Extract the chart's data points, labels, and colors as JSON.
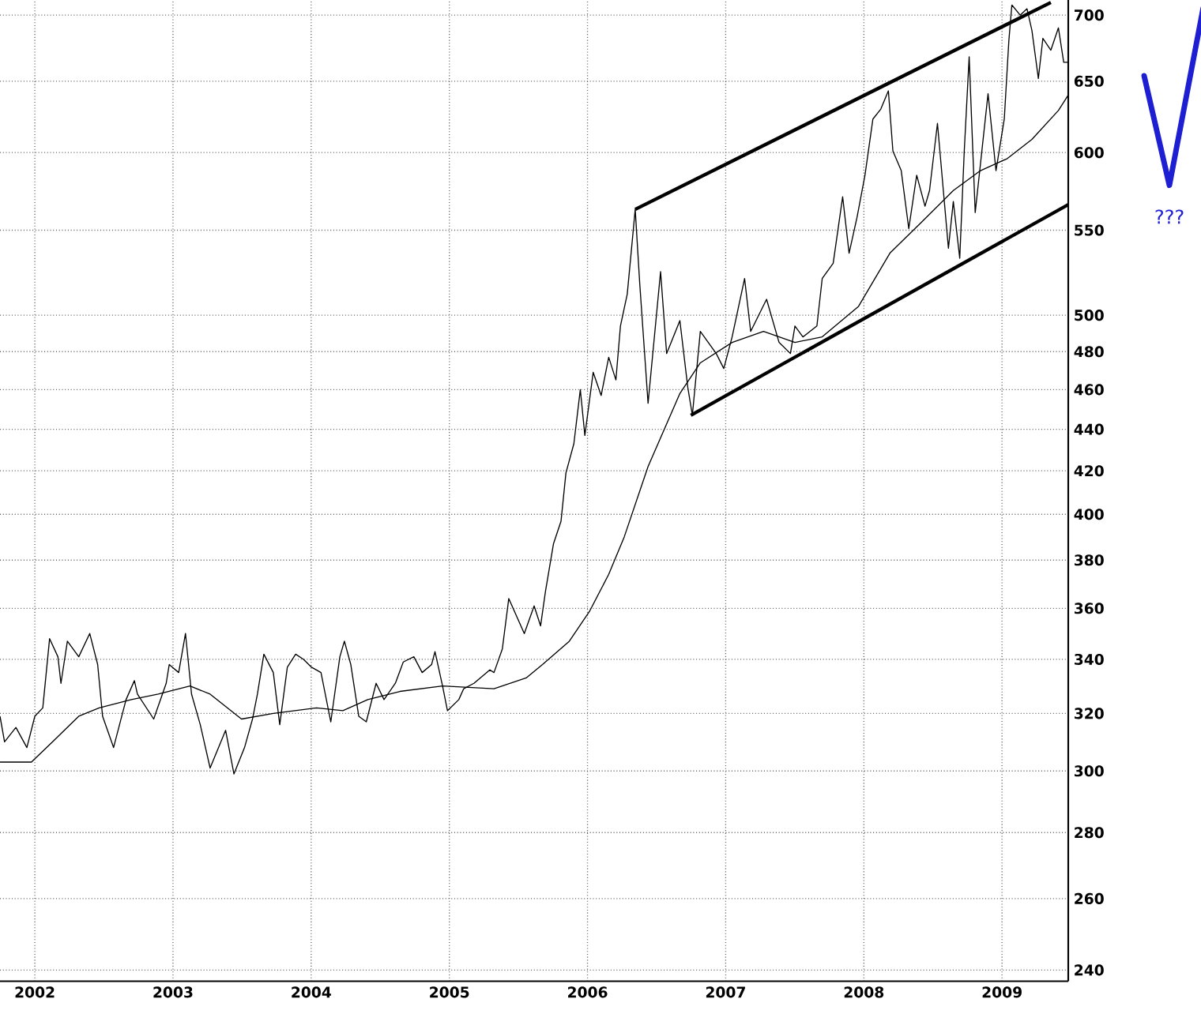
{
  "chart_data": {
    "type": "line",
    "log": "y",
    "grid": true,
    "xlim": [
      "2001-10-01",
      "2009-06-25"
    ],
    "ylim": [
      237,
      712
    ],
    "xticks": [
      "2002",
      "2003",
      "2004",
      "2005",
      "2006",
      "2007",
      "2008",
      "2009"
    ],
    "yticks": [
      240,
      260,
      280,
      300,
      320,
      340,
      360,
      380,
      400,
      420,
      440,
      460,
      480,
      500,
      550,
      600,
      650,
      700
    ],
    "annotations": [
      "???"
    ],
    "series": [
      {
        "color": "#000000",
        "x": [
          "2001-10-01",
          "2001-10-13",
          "2001-11-12",
          "2001-12-11",
          "2002-01-01",
          "2002-01-22",
          "2002-02-09",
          "2002-03-03",
          "2002-03-11",
          "2002-03-28",
          "2002-04-27",
          "2002-05-26",
          "2002-06-16",
          "2002-06-29",
          "2002-07-28",
          "2002-08-30",
          "2002-09-21",
          "2002-09-29",
          "2002-11-11",
          "2002-12-14",
          "2002-12-22",
          "2003-01-16",
          "2003-02-03",
          "2003-02-19",
          "2003-03-14",
          "2003-04-09",
          "2003-05-20",
          "2003-06-11",
          "2003-07-09",
          "2003-07-30",
          "2003-08-12",
          "2003-08-29",
          "2003-09-23",
          "2003-10-10",
          "2003-10-30",
          "2003-11-21",
          "2003-12-12",
          "2004-01-02",
          "2004-01-27",
          "2004-02-22",
          "2004-03-17",
          "2004-03-29",
          "2004-04-15",
          "2004-05-06",
          "2004-05-26",
          "2004-06-21",
          "2004-07-12",
          "2004-08-11",
          "2004-09-01",
          "2004-09-29",
          "2004-10-21",
          "2004-11-15",
          "2004-11-24",
          "2004-12-14",
          "2004-12-27",
          "2005-01-26",
          "2005-02-08",
          "2005-03-07",
          "2005-04-18",
          "2005-04-29",
          "2005-05-21",
          "2005-06-07",
          "2005-07-18",
          "2005-08-13",
          "2005-08-30",
          "2005-09-12",
          "2005-10-03",
          "2005-10-23",
          "2005-11-05",
          "2005-11-26",
          "2005-12-13",
          "2005-12-25",
          "2006-01-16",
          "2006-02-06",
          "2006-02-26",
          "2006-03-17",
          "2006-03-29",
          "2006-04-16",
          "2006-05-07",
          "2006-05-19",
          "2006-06-10",
          "2006-07-13",
          "2006-07-29",
          "2006-09-02",
          "2006-09-23",
          "2006-10-05",
          "2006-10-26",
          "2006-12-07",
          "2006-12-27",
          "2007-01-18",
          "2007-02-20",
          "2007-03-08",
          "2007-04-19",
          "2007-05-22",
          "2007-06-21",
          "2007-07-03",
          "2007-07-24",
          "2007-08-30",
          "2007-09-13",
          "2007-10-12",
          "2007-11-06",
          "2007-11-23",
          "2007-12-14",
          "2008-01-04",
          "2008-01-25",
          "2008-02-15",
          "2008-03-06",
          "2008-03-18",
          "2008-04-09",
          "2008-04-29",
          "2008-05-20",
          "2008-06-11",
          "2008-06-23",
          "2008-07-14",
          "2008-08-12",
          "2008-08-25",
          "2008-09-11",
          "2008-09-23",
          "2008-10-06",
          "2008-10-22",
          "2008-11-25",
          "2008-12-16",
          "2009-01-07",
          "2009-01-19",
          "2009-01-27",
          "2009-02-18",
          "2009-03-08",
          "2009-03-21",
          "2009-04-07",
          "2009-04-19",
          "2009-05-10",
          "2009-05-30",
          "2009-06-13",
          "2009-06-25"
        ],
        "values": [
          319,
          310,
          315,
          308,
          319,
          322,
          348,
          341,
          331,
          347,
          341,
          350,
          338,
          319,
          308,
          325,
          332,
          327,
          318,
          331,
          338,
          335,
          350,
          327,
          316,
          301,
          314,
          299,
          308,
          318,
          327,
          342,
          335,
          316,
          337,
          342,
          340,
          337,
          335,
          317,
          341,
          347,
          338,
          319,
          317,
          331,
          325,
          331,
          339,
          341,
          335,
          338,
          343,
          330,
          321,
          325,
          329,
          331,
          336,
          335,
          344,
          364,
          350,
          361,
          353,
          367,
          387,
          397,
          419,
          433,
          460,
          437,
          469,
          457,
          477,
          465,
          494,
          512,
          563,
          518,
          453,
          525,
          479,
          497,
          461,
          447,
          491,
          479,
          471,
          488,
          521,
          491,
          509,
          485,
          479,
          494,
          488,
          494,
          521,
          530,
          571,
          536,
          558,
          585,
          623,
          630,
          643,
          601,
          588,
          551,
          585,
          565,
          575,
          620,
          539,
          568,
          533,
          601,
          668,
          561,
          641,
          588,
          623,
          680,
          708,
          700,
          705,
          688,
          652,
          682,
          673,
          690,
          664,
          664
        ]
      },
      {
        "color": "#000000",
        "x": [
          "2001-10-01",
          "2001-12-23",
          "2002-02-17",
          "2002-04-27",
          "2002-06-20",
          "2002-09-13",
          "2002-11-23",
          "2003-02-15",
          "2003-04-09",
          "2003-07-01",
          "2003-09-23",
          "2004-01-15",
          "2004-03-25",
          "2004-05-30",
          "2004-08-23",
          "2004-12-14",
          "2005-04-29",
          "2005-07-23",
          "2005-09-04",
          "2005-11-14",
          "2006-01-07",
          "2006-02-26",
          "2006-04-08",
          "2006-06-10",
          "2006-09-02",
          "2006-10-26",
          "2007-01-18",
          "2007-04-11",
          "2007-07-03",
          "2007-09-13",
          "2007-12-18",
          "2008-03-10",
          "2008-06-02",
          "2008-08-25",
          "2008-11-05",
          "2009-01-15",
          "2009-03-21",
          "2009-05-30",
          "2009-06-25"
        ],
        "values": [
          303,
          303,
          310,
          319,
          322,
          325,
          327,
          330,
          327,
          318,
          320,
          322,
          321,
          325,
          328,
          330,
          329,
          333,
          338,
          347,
          359,
          374,
          390,
          422,
          458,
          474,
          485,
          491,
          485,
          488,
          505,
          536,
          555,
          575,
          588,
          596,
          609,
          629,
          640
        ]
      },
      {
        "color": "#000000",
        "x": [
          "2006-05-07",
          "2009-05-10"
        ],
        "values": [
          563,
          710
        ]
      },
      {
        "color": "#000000",
        "x": [
          "2006-10-01",
          "2009-06-25"
        ],
        "values": [
          447,
          566
        ]
      }
    ]
  }
}
